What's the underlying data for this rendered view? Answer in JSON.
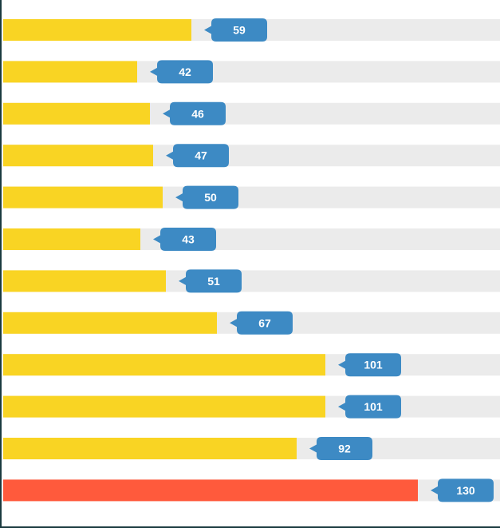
{
  "chart_data": {
    "type": "bar",
    "orientation": "horizontal",
    "title": "",
    "xlabel": "",
    "ylabel": "",
    "values": [
      59,
      42,
      46,
      47,
      50,
      43,
      51,
      67,
      101,
      101,
      92,
      130
    ],
    "xlim": [
      0,
      154
    ],
    "grid": false,
    "legend": "none",
    "highlight_index": 11
  },
  "colors": {
    "bar": "#f9d423",
    "highlight_bar": "#ff5a3c",
    "track": "#ebebeb",
    "callout": "#3d8ac4",
    "label_text": "#ffffff",
    "frame": "#1b3a3f"
  }
}
